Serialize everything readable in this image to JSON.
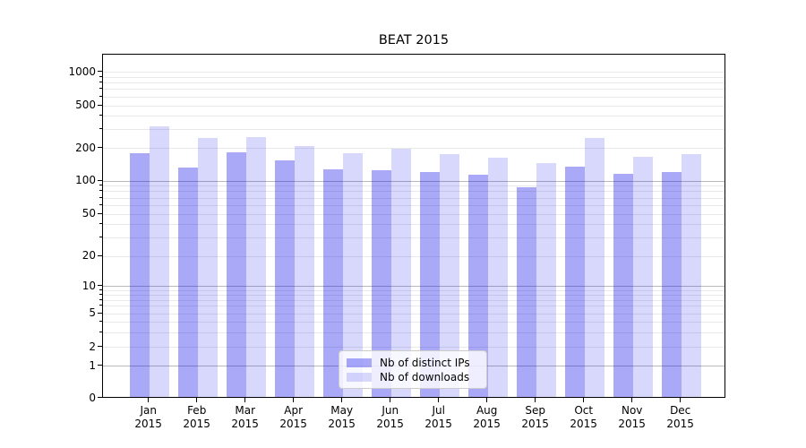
{
  "figure": {
    "title": "BEAT 2015"
  },
  "chart_data": {
    "type": "bar",
    "title": "BEAT 2015",
    "categories": [
      "Jan 2015",
      "Feb 2015",
      "Mar 2015",
      "Apr 2015",
      "May 2015",
      "Jun 2015",
      "Jul 2015",
      "Aug 2015",
      "Sep 2015",
      "Oct 2015",
      "Nov 2015",
      "Dec 2015"
    ],
    "series": [
      {
        "name": "Nb of distinct IPs",
        "color": "rgba(10,10,235,0.35)",
        "values": [
          180,
          133,
          183,
          154,
          127,
          125,
          121,
          114,
          87,
          135,
          117,
          121
        ]
      },
      {
        "name": "Nb of downloads",
        "color": "rgba(10,10,235,0.16)",
        "values": [
          320,
          248,
          255,
          210,
          180,
          200,
          176,
          164,
          147,
          248,
          166,
          178
        ]
      }
    ],
    "xlabel": "",
    "ylabel": "",
    "yscale": "symlog",
    "yticks": [
      0,
      1,
      2,
      5,
      10,
      20,
      50,
      100,
      200,
      500,
      1000
    ],
    "yticks_minor": [
      3,
      4,
      6,
      7,
      8,
      9,
      30,
      40,
      60,
      70,
      80,
      90,
      300,
      400,
      600,
      700,
      800,
      900
    ],
    "ylim": [
      0,
      1400
    ],
    "grid": "horizontal, major and minor",
    "legend_position": "lower center",
    "colors": {
      "major_grid": "#b9b9b9",
      "minor_grid": "#e9e9e9",
      "axis": "#000000"
    }
  }
}
